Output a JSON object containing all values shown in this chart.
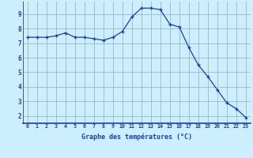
{
  "x": [
    0,
    1,
    2,
    3,
    4,
    5,
    6,
    7,
    8,
    9,
    10,
    11,
    12,
    13,
    14,
    15,
    16,
    17,
    18,
    19,
    20,
    21,
    22,
    23
  ],
  "y": [
    7.4,
    7.4,
    7.4,
    7.5,
    7.7,
    7.4,
    7.4,
    7.3,
    7.2,
    7.4,
    7.8,
    8.8,
    9.4,
    9.4,
    9.3,
    8.3,
    8.1,
    6.7,
    5.5,
    4.7,
    3.8,
    2.9,
    2.5,
    1.9
  ],
  "line_color": "#1c3fa0",
  "marker": "+",
  "bg_color": "#cceeff",
  "grid_color": "#99bbbb",
  "xlabel": "Graphe des températures (°C)",
  "xlabel_color": "#1c3fa0",
  "tick_color": "#1c3fa0",
  "ylim": [
    1.5,
    9.85
  ],
  "xlim": [
    -0.5,
    23.5
  ],
  "yticks": [
    2,
    3,
    4,
    5,
    6,
    7,
    8,
    9
  ],
  "xticks": [
    0,
    1,
    2,
    3,
    4,
    5,
    6,
    7,
    8,
    9,
    10,
    11,
    12,
    13,
    14,
    15,
    16,
    17,
    18,
    19,
    20,
    21,
    22,
    23
  ],
  "xtick_labels": [
    "0",
    "1",
    "2",
    "3",
    "4",
    "5",
    "6",
    "7",
    "8",
    "9",
    "10",
    "11",
    "12",
    "13",
    "14",
    "15",
    "16",
    "17",
    "18",
    "19",
    "20",
    "21",
    "22",
    "23"
  ]
}
